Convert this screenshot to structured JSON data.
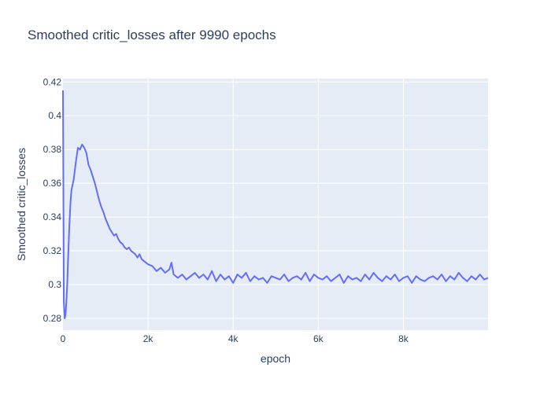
{
  "chart_data": {
    "type": "line",
    "title": "Smoothed critic_losses after 9990 epochs",
    "xlabel": "epoch",
    "ylabel": "Smoothed critic_losses",
    "xlim": [
      0,
      9990
    ],
    "ylim": [
      0.273,
      0.422
    ],
    "x_ticks": [
      0,
      2000,
      4000,
      6000,
      8000
    ],
    "x_tick_labels": [
      "0",
      "2k",
      "4k",
      "6k",
      "8k"
    ],
    "y_ticks": [
      0.28,
      0.3,
      0.32,
      0.34,
      0.36,
      0.38,
      0.4,
      0.42
    ],
    "y_tick_labels": [
      "0.28",
      "0.3",
      "0.32",
      "0.34",
      "0.36",
      "0.38",
      "0.4",
      "0.42"
    ],
    "grid": true,
    "legend": "none",
    "colors": {
      "line": "#636efa",
      "plot_bg": "#e5ecf6",
      "grid": "#ffffff",
      "text": "#2a3f5f"
    },
    "series": [
      {
        "x": [
          0,
          20,
          40,
          60,
          80,
          100,
          120,
          150,
          180,
          200,
          250,
          300,
          350,
          400,
          450,
          500,
          550,
          600,
          650,
          700,
          750,
          800,
          850,
          900,
          950,
          1000,
          1050,
          1100,
          1150,
          1200,
          1250,
          1300,
          1350,
          1400,
          1450,
          1500,
          1550,
          1600,
          1650,
          1700,
          1750,
          1800,
          1850,
          1900,
          1950,
          2000,
          2100,
          2200,
          2300,
          2400,
          2500,
          2550,
          2600,
          2700,
          2800,
          2900,
          3000,
          3100,
          3200,
          3300,
          3400,
          3500,
          3600,
          3700,
          3800,
          3900,
          4000,
          4100,
          4200,
          4300,
          4400,
          4500,
          4600,
          4700,
          4800,
          4900,
          5000,
          5100,
          5200,
          5300,
          5400,
          5500,
          5600,
          5700,
          5800,
          5900,
          6000,
          6100,
          6200,
          6300,
          6400,
          6500,
          6600,
          6700,
          6800,
          6900,
          7000,
          7100,
          7200,
          7300,
          7400,
          7500,
          7600,
          7700,
          7800,
          7900,
          8000,
          8100,
          8200,
          8300,
          8400,
          8500,
          8600,
          8700,
          8800,
          8900,
          9000,
          9100,
          9200,
          9300,
          9400,
          9500,
          9600,
          9700,
          9800,
          9900,
          9990
        ],
        "y": [
          0.415,
          0.29,
          0.28,
          0.282,
          0.29,
          0.3,
          0.315,
          0.335,
          0.35,
          0.356,
          0.362,
          0.372,
          0.381,
          0.38,
          0.383,
          0.381,
          0.378,
          0.371,
          0.368,
          0.364,
          0.36,
          0.355,
          0.35,
          0.346,
          0.343,
          0.339,
          0.336,
          0.333,
          0.331,
          0.329,
          0.33,
          0.327,
          0.325,
          0.324,
          0.322,
          0.321,
          0.322,
          0.32,
          0.319,
          0.318,
          0.316,
          0.318,
          0.315,
          0.314,
          0.313,
          0.312,
          0.311,
          0.308,
          0.31,
          0.307,
          0.309,
          0.313,
          0.306,
          0.304,
          0.306,
          0.303,
          0.305,
          0.307,
          0.304,
          0.306,
          0.303,
          0.308,
          0.302,
          0.306,
          0.303,
          0.305,
          0.301,
          0.306,
          0.304,
          0.307,
          0.302,
          0.305,
          0.303,
          0.304,
          0.301,
          0.305,
          0.304,
          0.303,
          0.306,
          0.302,
          0.304,
          0.305,
          0.303,
          0.307,
          0.302,
          0.306,
          0.304,
          0.303,
          0.305,
          0.302,
          0.304,
          0.306,
          0.301,
          0.305,
          0.303,
          0.304,
          0.302,
          0.306,
          0.303,
          0.307,
          0.304,
          0.302,
          0.305,
          0.303,
          0.306,
          0.302,
          0.304,
          0.305,
          0.301,
          0.305,
          0.303,
          0.302,
          0.304,
          0.305,
          0.303,
          0.306,
          0.302,
          0.305,
          0.303,
          0.307,
          0.304,
          0.302,
          0.305,
          0.303,
          0.306,
          0.303,
          0.304
        ]
      }
    ]
  }
}
